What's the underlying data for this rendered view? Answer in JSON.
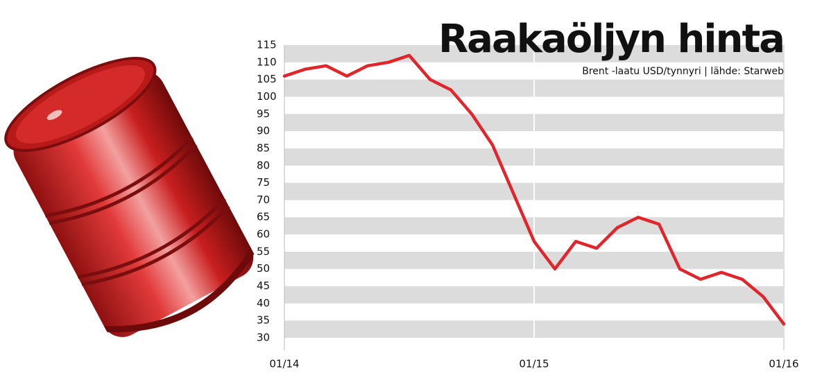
{
  "chart_data": {
    "type": "line",
    "title": "Raakaöljyn hinta",
    "subtitle": "Brent -laatu USD/tynnyri | lähde: Starweb",
    "categories": [
      "01/14",
      null,
      null,
      null,
      null,
      null,
      null,
      null,
      null,
      null,
      null,
      null,
      "01/15",
      null,
      null,
      null,
      null,
      null,
      null,
      null,
      null,
      null,
      null,
      null,
      "01/16"
    ],
    "values": [
      106,
      108,
      109,
      106,
      109,
      110,
      112,
      105,
      102,
      95,
      86,
      72,
      58,
      50,
      58,
      56,
      62,
      65,
      63,
      50,
      47,
      49,
      47,
      42,
      34
    ],
    "color": "#e0262b",
    "ylim": [
      30,
      115
    ],
    "yticks": [
      30,
      35,
      40,
      45,
      50,
      55,
      60,
      65,
      70,
      75,
      80,
      85,
      90,
      95,
      100,
      105,
      110,
      115
    ],
    "grid": true
  }
}
